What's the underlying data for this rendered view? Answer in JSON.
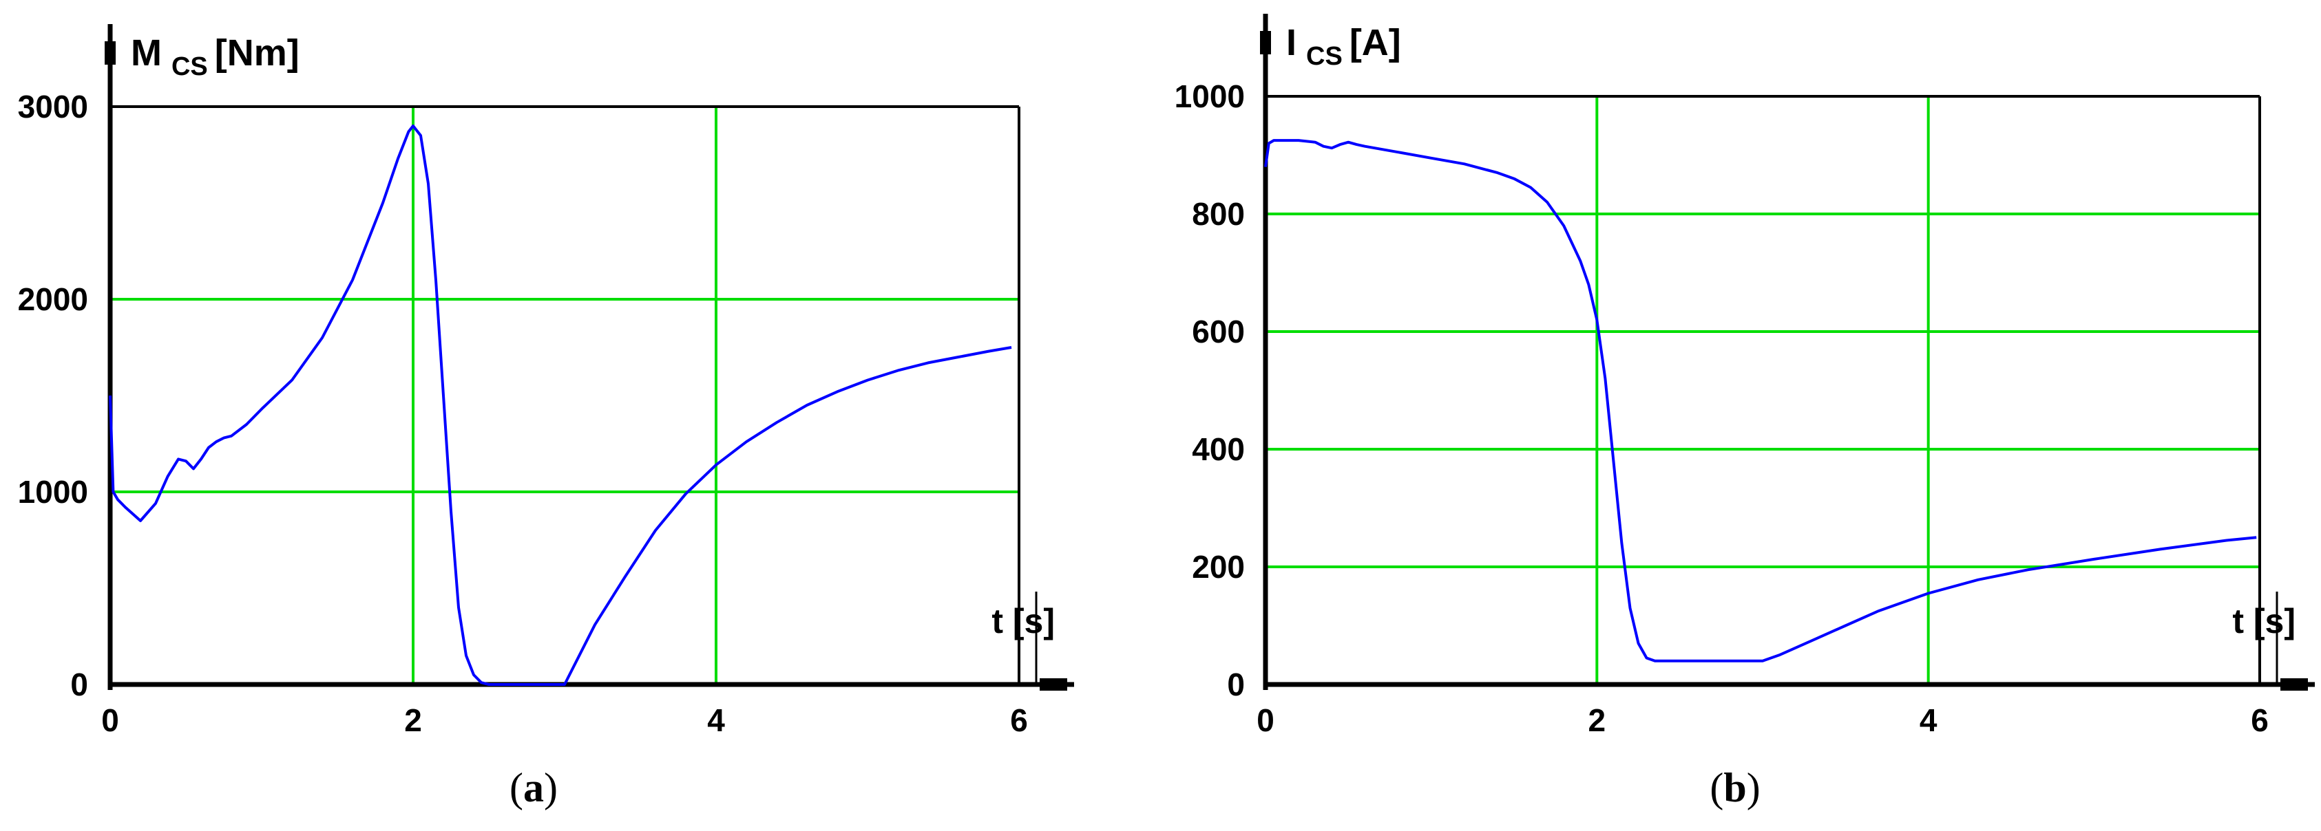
{
  "chart_data": [
    {
      "id": "a",
      "type": "line",
      "caption": "a",
      "ylabel": {
        "main": "M",
        "sub": "CS",
        "unit": "[Nm]"
      },
      "xlabel": "t [s]",
      "xlim": [
        0,
        6
      ],
      "ylim": [
        0,
        3000
      ],
      "xticks": [
        0,
        2,
        4,
        6
      ],
      "yticks": [
        0,
        1000,
        2000,
        3000
      ],
      "grid_x": [
        2,
        4
      ],
      "grid_y": [
        1000,
        2000
      ],
      "grid": true,
      "grid_color": "#00dd00",
      "line_color": "#0000ff",
      "series": [
        {
          "x": [
            0,
            0.02,
            0.05,
            0.1,
            0.2,
            0.3,
            0.38,
            0.45,
            0.5,
            0.55,
            0.6,
            0.65,
            0.7,
            0.75,
            0.8,
            0.9,
            1.0,
            1.2,
            1.4,
            1.6,
            1.8,
            1.9,
            1.97,
            2.0,
            2.05,
            2.1,
            2.15,
            2.2,
            2.25,
            2.3,
            2.35,
            2.4,
            2.45,
            2.5,
            2.7,
            2.96,
            3.0,
            3.2,
            3.4,
            3.6,
            3.8,
            4.0,
            4.2,
            4.4,
            4.6,
            4.8,
            5.0,
            5.2,
            5.4,
            5.6,
            5.8,
            5.95
          ],
          "y": [
            1500,
            1000,
            960,
            920,
            850,
            940,
            1080,
            1170,
            1160,
            1120,
            1170,
            1230,
            1260,
            1280,
            1290,
            1350,
            1430,
            1580,
            1800,
            2100,
            2500,
            2730,
            2870,
            2900,
            2850,
            2600,
            2100,
            1500,
            900,
            400,
            150,
            50,
            10,
            0,
            0,
            0,
            0,
            310,
            560,
            800,
            990,
            1140,
            1260,
            1360,
            1450,
            1520,
            1580,
            1630,
            1670,
            1700,
            1730,
            1750
          ]
        }
      ]
    },
    {
      "id": "b",
      "type": "line",
      "caption": "b",
      "ylabel": {
        "main": "I",
        "sub": "CS",
        "unit": "[A]"
      },
      "xlabel": "t [s]",
      "xlim": [
        0,
        6
      ],
      "ylim": [
        0,
        1000
      ],
      "xticks": [
        0,
        2,
        4,
        6
      ],
      "yticks": [
        0,
        200,
        400,
        600,
        800,
        1000
      ],
      "grid_x": [
        2,
        4
      ],
      "grid_y": [
        200,
        400,
        600,
        800
      ],
      "grid": true,
      "grid_color": "#00dd00",
      "line_color": "#0000ff",
      "series": [
        {
          "x": [
            0,
            0.02,
            0.05,
            0.1,
            0.2,
            0.3,
            0.35,
            0.4,
            0.45,
            0.5,
            0.55,
            0.6,
            0.8,
            1.0,
            1.2,
            1.4,
            1.5,
            1.6,
            1.7,
            1.8,
            1.9,
            1.95,
            2.0,
            2.05,
            2.1,
            2.15,
            2.2,
            2.25,
            2.3,
            2.35,
            2.5,
            2.8,
            3.0,
            3.1,
            3.3,
            3.5,
            3.7,
            4.0,
            4.3,
            4.6,
            5.0,
            5.4,
            5.8,
            5.98
          ],
          "y": [
            880,
            920,
            925,
            925,
            925,
            922,
            915,
            912,
            918,
            922,
            918,
            915,
            905,
            895,
            885,
            870,
            860,
            845,
            820,
            780,
            720,
            680,
            620,
            520,
            380,
            240,
            130,
            70,
            45,
            40,
            40,
            40,
            40,
            50,
            75,
            100,
            125,
            155,
            178,
            195,
            213,
            230,
            245,
            250
          ]
        }
      ]
    }
  ]
}
